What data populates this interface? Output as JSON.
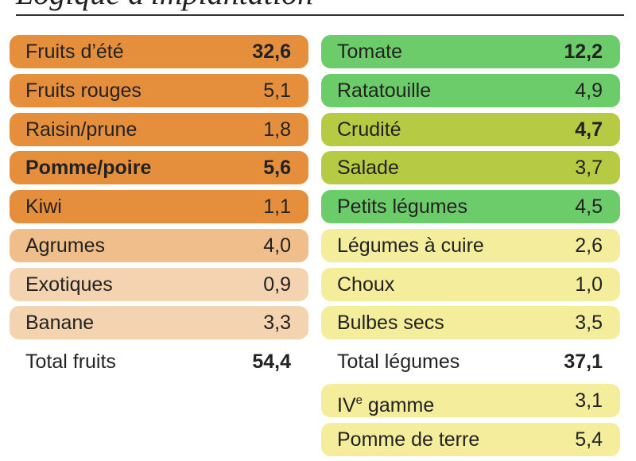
{
  "title": "Logique d'implantation",
  "fruits": [
    {
      "label": "Fruits d’été",
      "value": "32,6",
      "bold_value": true
    },
    {
      "label": "Fruits rouges",
      "value": "5,1"
    },
    {
      "label": "Raisin/prune",
      "value": "1,8"
    },
    {
      "label": "Pomme/poire",
      "value": "5,6",
      "bold": true
    },
    {
      "label": "Kiwi",
      "value": "1,1"
    },
    {
      "label": "Agrumes",
      "value": "4,0"
    },
    {
      "label": "Exotiques",
      "value": "0,9"
    },
    {
      "label": "Banane",
      "value": "3,3"
    }
  ],
  "fruits_total": {
    "label": "Total fruits",
    "value": "54,4"
  },
  "legumes": [
    {
      "label": "Tomate",
      "value": "12,2",
      "bold_value": true
    },
    {
      "label": "Ratatouille",
      "value": "4,9"
    },
    {
      "label": "Crudité",
      "value": "4,7",
      "bold_value": true
    },
    {
      "label": "Salade",
      "value": "3,7"
    },
    {
      "label": "Petits légumes",
      "value": "4,5"
    },
    {
      "label": "Légumes à cuire",
      "value": "2,6"
    },
    {
      "label": "Choux",
      "value": "1,0"
    },
    {
      "label": "Bulbes secs",
      "value": "3,5"
    }
  ],
  "legumes_total": {
    "label": "Total légumes",
    "value": "37,1"
  },
  "extra": [
    {
      "label_main": "IV",
      "label_sup": "e",
      "label_rest": " gamme",
      "value": "3,1"
    },
    {
      "label": "Pomme de terre",
      "value": "5,4"
    }
  ],
  "colors": {
    "orange": "#e58f3c",
    "light_orange": "#f0be8a",
    "beige": "#f3d3b0",
    "green": "#6ccc6a",
    "olive": "#b7ca44",
    "yellow": "#f4ed9c"
  }
}
